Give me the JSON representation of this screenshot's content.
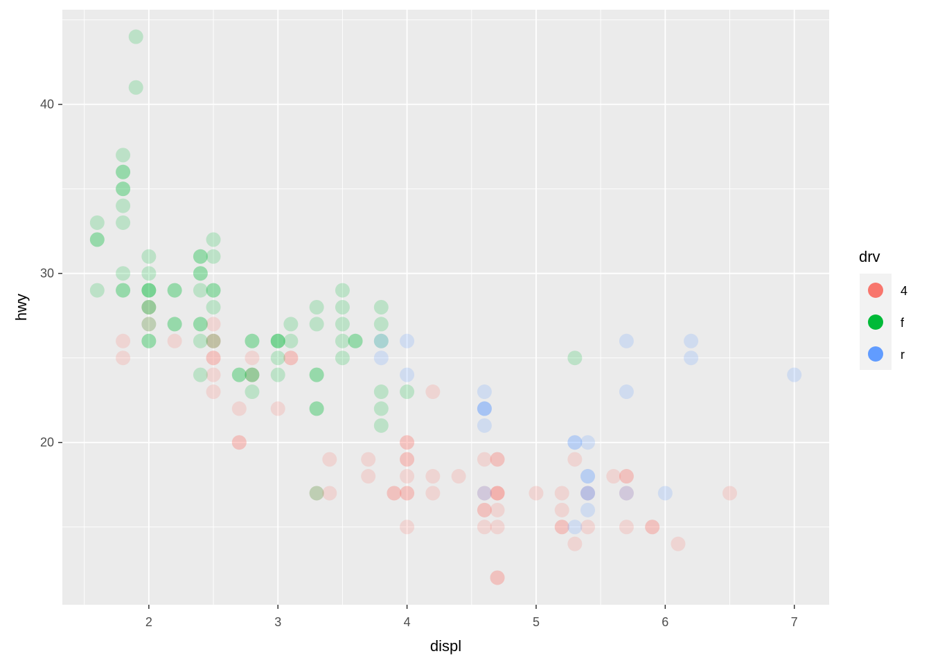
{
  "chart_data": {
    "type": "scatter",
    "xlabel": "displ",
    "ylabel": "hwy",
    "xlim": [
      1.33,
      7.27
    ],
    "ylim": [
      10.4,
      45.6
    ],
    "x_ticks": [
      2,
      3,
      4,
      5,
      6,
      7
    ],
    "y_ticks": [
      20,
      30,
      40
    ],
    "grid": true,
    "legend": {
      "title": "drv",
      "position": "right",
      "entries": [
        {
          "key": "4",
          "label": "4",
          "color": "#F8766D"
        },
        {
          "key": "f",
          "label": "f",
          "color": "#00BA38"
        },
        {
          "key": "r",
          "label": "r",
          "color": "#619CFF"
        }
      ]
    },
    "point_alpha": 0.2,
    "series": [
      {
        "name": "4",
        "color": "#F8766D",
        "points": [
          [
            1.8,
            26
          ],
          [
            1.8,
            25
          ],
          [
            2.0,
            27
          ],
          [
            2.0,
            28
          ],
          [
            2.2,
            26
          ],
          [
            2.5,
            27
          ],
          [
            2.5,
            26
          ],
          [
            2.5,
            26
          ],
          [
            2.5,
            25
          ],
          [
            2.5,
            25
          ],
          [
            2.5,
            24
          ],
          [
            2.5,
            23
          ],
          [
            2.7,
            22
          ],
          [
            2.7,
            20
          ],
          [
            2.7,
            20
          ],
          [
            2.8,
            25
          ],
          [
            2.8,
            24
          ],
          [
            3.0,
            22
          ],
          [
            3.1,
            25
          ],
          [
            3.1,
            25
          ],
          [
            3.3,
            17
          ],
          [
            3.4,
            19
          ],
          [
            3.4,
            17
          ],
          [
            3.7,
            19
          ],
          [
            3.7,
            18
          ],
          [
            3.9,
            17
          ],
          [
            3.9,
            17
          ],
          [
            4.0,
            20
          ],
          [
            4.0,
            20
          ],
          [
            4.0,
            19
          ],
          [
            4.0,
            19
          ],
          [
            4.0,
            18
          ],
          [
            4.0,
            17
          ],
          [
            4.0,
            17
          ],
          [
            4.0,
            15
          ],
          [
            4.2,
            23
          ],
          [
            4.2,
            18
          ],
          [
            4.2,
            17
          ],
          [
            4.4,
            18
          ],
          [
            4.6,
            19
          ],
          [
            4.6,
            17
          ],
          [
            4.6,
            16
          ],
          [
            4.6,
            16
          ],
          [
            4.6,
            15
          ],
          [
            4.7,
            19
          ],
          [
            4.7,
            19
          ],
          [
            4.7,
            17
          ],
          [
            4.7,
            17
          ],
          [
            4.7,
            17
          ],
          [
            4.7,
            16
          ],
          [
            4.7,
            15
          ],
          [
            4.7,
            12
          ],
          [
            4.7,
            12
          ],
          [
            5.0,
            17
          ],
          [
            5.2,
            17
          ],
          [
            5.2,
            16
          ],
          [
            5.2,
            15
          ],
          [
            5.2,
            15
          ],
          [
            5.3,
            19
          ],
          [
            5.3,
            14
          ],
          [
            5.4,
            17
          ],
          [
            5.4,
            15
          ],
          [
            5.6,
            18
          ],
          [
            5.7,
            18
          ],
          [
            5.7,
            18
          ],
          [
            5.7,
            17
          ],
          [
            5.7,
            15
          ],
          [
            5.9,
            15
          ],
          [
            5.9,
            15
          ],
          [
            6.1,
            14
          ],
          [
            6.5,
            17
          ]
        ]
      },
      {
        "name": "f",
        "color": "#00BA38",
        "points": [
          [
            1.6,
            33
          ],
          [
            1.6,
            32
          ],
          [
            1.6,
            32
          ],
          [
            1.6,
            29
          ],
          [
            1.8,
            37
          ],
          [
            1.8,
            36
          ],
          [
            1.8,
            36
          ],
          [
            1.8,
            35
          ],
          [
            1.8,
            35
          ],
          [
            1.8,
            34
          ],
          [
            1.8,
            33
          ],
          [
            1.8,
            30
          ],
          [
            1.8,
            29
          ],
          [
            1.8,
            29
          ],
          [
            1.9,
            44
          ],
          [
            1.9,
            41
          ],
          [
            2.0,
            31
          ],
          [
            2.0,
            30
          ],
          [
            2.0,
            29
          ],
          [
            2.0,
            29
          ],
          [
            2.0,
            29
          ],
          [
            2.0,
            28
          ],
          [
            2.0,
            28
          ],
          [
            2.0,
            27
          ],
          [
            2.0,
            26
          ],
          [
            2.0,
            26
          ],
          [
            2.2,
            29
          ],
          [
            2.2,
            29
          ],
          [
            2.2,
            27
          ],
          [
            2.2,
            27
          ],
          [
            2.4,
            31
          ],
          [
            2.4,
            31
          ],
          [
            2.4,
            30
          ],
          [
            2.4,
            30
          ],
          [
            2.4,
            29
          ],
          [
            2.4,
            27
          ],
          [
            2.4,
            27
          ],
          [
            2.4,
            26
          ],
          [
            2.4,
            24
          ],
          [
            2.5,
            32
          ],
          [
            2.5,
            31
          ],
          [
            2.5,
            29
          ],
          [
            2.5,
            29
          ],
          [
            2.5,
            28
          ],
          [
            2.5,
            26
          ],
          [
            2.7,
            24
          ],
          [
            2.7,
            24
          ],
          [
            2.8,
            26
          ],
          [
            2.8,
            26
          ],
          [
            2.8,
            24
          ],
          [
            2.8,
            24
          ],
          [
            2.8,
            23
          ],
          [
            3.0,
            26
          ],
          [
            3.0,
            26
          ],
          [
            3.0,
            26
          ],
          [
            3.0,
            25
          ],
          [
            3.0,
            24
          ],
          [
            3.1,
            27
          ],
          [
            3.1,
            26
          ],
          [
            3.3,
            28
          ],
          [
            3.3,
            27
          ],
          [
            3.3,
            24
          ],
          [
            3.3,
            24
          ],
          [
            3.3,
            22
          ],
          [
            3.3,
            22
          ],
          [
            3.3,
            17
          ],
          [
            3.5,
            29
          ],
          [
            3.5,
            28
          ],
          [
            3.5,
            27
          ],
          [
            3.5,
            26
          ],
          [
            3.5,
            25
          ],
          [
            3.6,
            26
          ],
          [
            3.6,
            26
          ],
          [
            3.8,
            28
          ],
          [
            3.8,
            27
          ],
          [
            3.8,
            26
          ],
          [
            3.8,
            23
          ],
          [
            3.8,
            22
          ],
          [
            3.8,
            21
          ],
          [
            4.0,
            23
          ],
          [
            5.3,
            25
          ]
        ]
      },
      {
        "name": "r",
        "color": "#619CFF",
        "points": [
          [
            3.8,
            26
          ],
          [
            3.8,
            25
          ],
          [
            4.0,
            26
          ],
          [
            4.0,
            24
          ],
          [
            4.6,
            23
          ],
          [
            4.6,
            22
          ],
          [
            4.6,
            22
          ],
          [
            4.6,
            22
          ],
          [
            4.6,
            21
          ],
          [
            4.6,
            17
          ],
          [
            5.3,
            20
          ],
          [
            5.3,
            20
          ],
          [
            5.3,
            15
          ],
          [
            5.4,
            20
          ],
          [
            5.4,
            18
          ],
          [
            5.4,
            18
          ],
          [
            5.4,
            17
          ],
          [
            5.4,
            17
          ],
          [
            5.4,
            16
          ],
          [
            5.7,
            26
          ],
          [
            5.7,
            23
          ],
          [
            5.7,
            17
          ],
          [
            6.0,
            17
          ],
          [
            6.2,
            26
          ],
          [
            6.2,
            25
          ],
          [
            7.0,
            24
          ]
        ]
      }
    ]
  }
}
